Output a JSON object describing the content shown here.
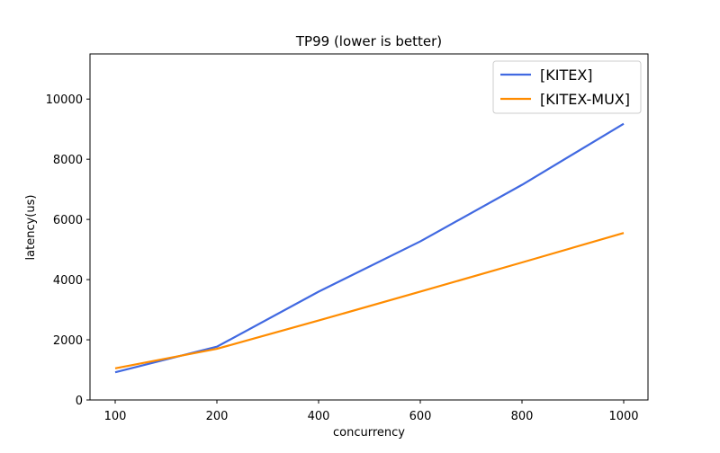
{
  "chart_data": {
    "type": "line",
    "title": "TP99 (lower is better)",
    "xlabel": "concurrency",
    "ylabel": "latency(us)",
    "categories": [
      "100",
      "200",
      "400",
      "600",
      "800",
      "1000"
    ],
    "ylim": [
      0,
      11500
    ],
    "yticks": [
      "0",
      "2000",
      "4000",
      "6000",
      "8000",
      "10000"
    ],
    "grid": false,
    "legend_position": "top-right",
    "series": [
      {
        "name": "[KITEX]",
        "color": "#4169e1",
        "values": [
          920,
          1770,
          3600,
          5270,
          7150,
          9180
        ]
      },
      {
        "name": "[KITEX-MUX]",
        "color": "#ff8c00",
        "values": [
          1050,
          1700,
          2640,
          3600,
          4570,
          5550
        ]
      }
    ]
  }
}
